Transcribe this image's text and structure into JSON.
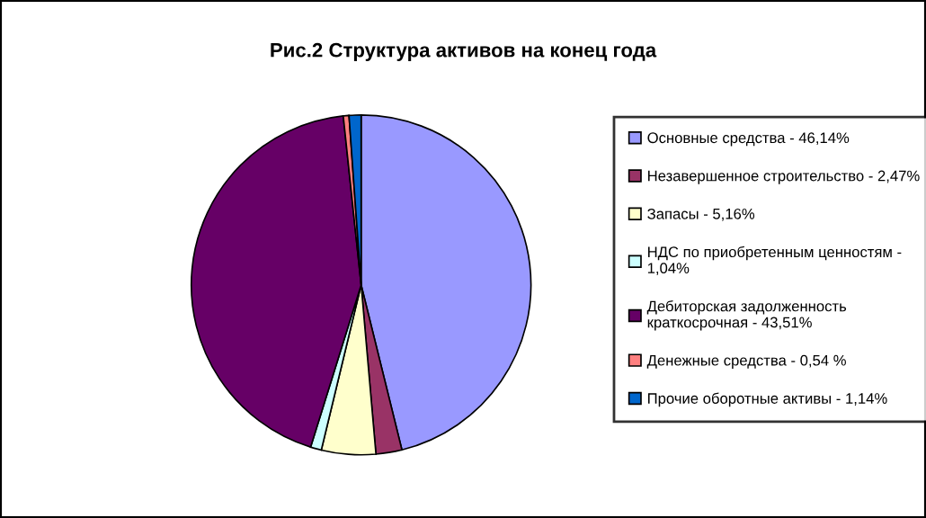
{
  "chart_data": {
    "type": "pie",
    "title": "Рис.2 Структура активов на конец года",
    "categories": [
      "Основные средства - 46,14%",
      "Незавершенное строительство - 2,47%",
      "Запасы - 5,16%",
      "НДС по приобретенным ценностям -\n1,04%",
      "Дебиторская задолженность\nкраткосрочная - 43,51%",
      "Денежные средства - 0,54 %",
      "Прочие оборотные активы - 1,14%"
    ],
    "values": [
      46.14,
      2.47,
      5.16,
      1.04,
      43.51,
      0.54,
      1.14
    ],
    "colors": [
      "#9999ff",
      "#993366",
      "#ffffcc",
      "#ccffff",
      "#660066",
      "#ff8080",
      "#0066cc"
    ],
    "legend": "right"
  }
}
